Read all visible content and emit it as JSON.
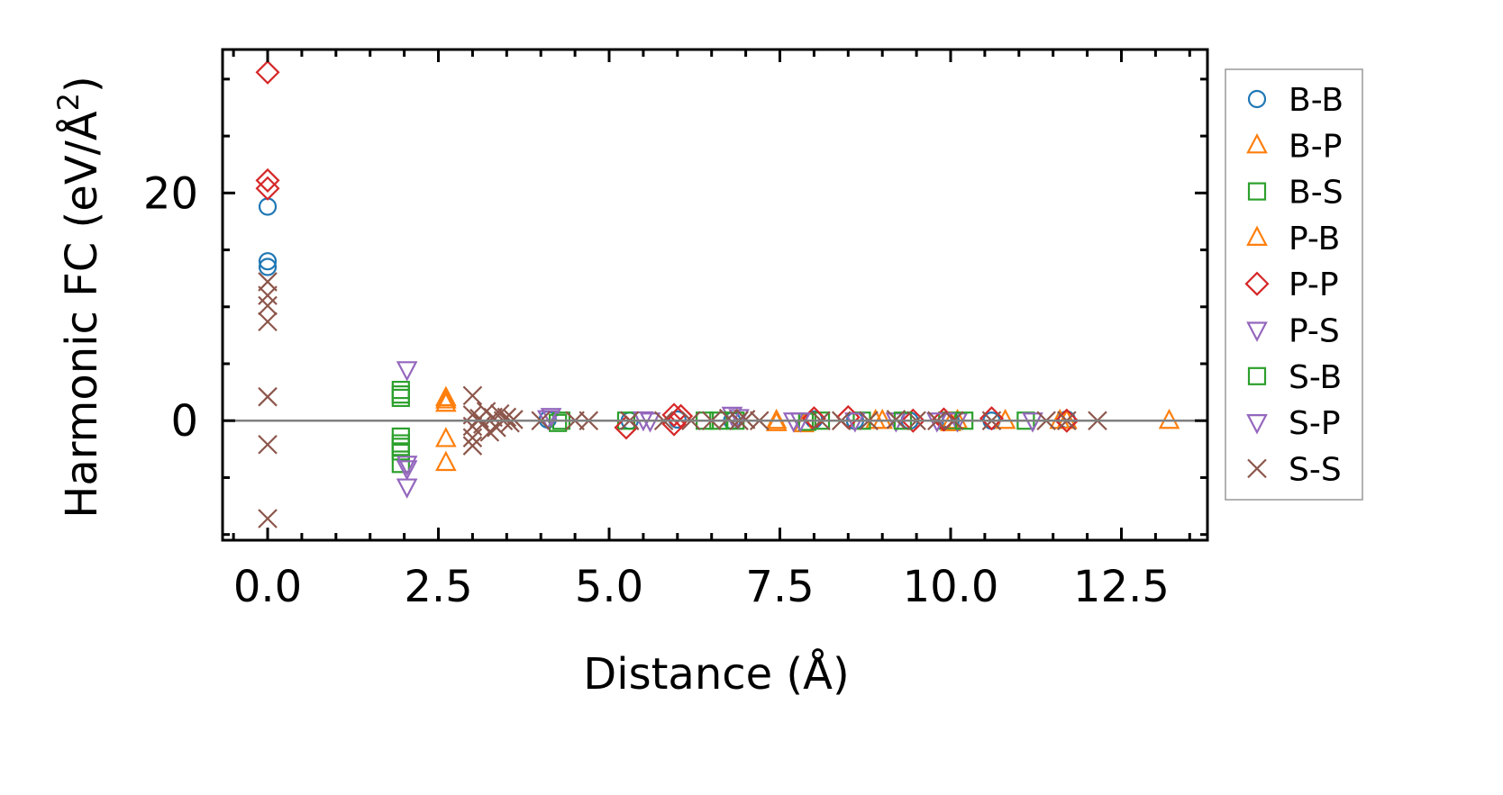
{
  "chart_data": {
    "type": "scatter",
    "xlabel": "Distance (Å)",
    "ylabel": "Harmonic FC (eV/Å²)",
    "ylabel_main": "Harmonic FC (eV/Å",
    "ylabel_sup": "2",
    "ylabel_end": ")",
    "xlim": [
      -0.66,
      13.76
    ],
    "ylim": [
      -10.5,
      32.6
    ],
    "xticks": [
      0.0,
      2.5,
      5.0,
      7.5,
      10.0,
      12.5
    ],
    "xtick_labels": [
      "0.0",
      "2.5",
      "5.0",
      "7.5",
      "10.0",
      "12.5"
    ],
    "yticks": [
      0,
      20
    ],
    "ytick_labels": [
      "0",
      "20"
    ],
    "x_minor_step": 0.5,
    "y_minor_step": 5,
    "zero_line": true,
    "legend_position": "outside-right",
    "series": [
      {
        "name": "B-B",
        "marker": "circle",
        "color": "#1f77b4",
        "points": [
          [
            0,
            18.8
          ],
          [
            0,
            14.0
          ],
          [
            0,
            13.5
          ],
          [
            4.1,
            0.1
          ],
          [
            5.3,
            0
          ],
          [
            6.0,
            0.1
          ],
          [
            6.8,
            0
          ],
          [
            8.0,
            0.1
          ],
          [
            8.6,
            0
          ],
          [
            9.4,
            0
          ],
          [
            10.0,
            0
          ],
          [
            10.6,
            0
          ],
          [
            11.7,
            0.1
          ]
        ]
      },
      {
        "name": "B-P",
        "marker": "triangle-up",
        "color": "#ff7f0e",
        "points": [
          [
            2.61,
            2.0
          ],
          [
            2.61,
            1.5
          ],
          [
            2.61,
            -1.6
          ],
          [
            2.61,
            -3.7
          ],
          [
            7.45,
            0
          ],
          [
            7.85,
            -0.3
          ],
          [
            8.9,
            0
          ],
          [
            10.1,
            0
          ],
          [
            10.8,
            0
          ],
          [
            11.6,
            0
          ],
          [
            13.2,
            0
          ]
        ]
      },
      {
        "name": "B-S",
        "marker": "square",
        "color": "#2ca02c",
        "points": [
          [
            1.95,
            2.7
          ],
          [
            1.95,
            2.0
          ],
          [
            1.95,
            -1.4
          ],
          [
            1.95,
            -2.0
          ],
          [
            1.95,
            -2.7
          ],
          [
            1.95,
            -3.8
          ],
          [
            4.3,
            0
          ],
          [
            5.25,
            0
          ],
          [
            6.4,
            0
          ],
          [
            6.85,
            0
          ],
          [
            8.1,
            0
          ],
          [
            8.7,
            0
          ],
          [
            9.95,
            0
          ],
          [
            11.1,
            0
          ]
        ]
      },
      {
        "name": "P-B",
        "marker": "triangle-up",
        "color": "#ff7f0e",
        "points": [
          [
            2.61,
            1.8
          ],
          [
            7.45,
            -0.2
          ],
          [
            9.0,
            0
          ],
          [
            10.0,
            -0.2
          ],
          [
            11.7,
            0
          ]
        ]
      },
      {
        "name": "P-P",
        "marker": "diamond",
        "color": "#d62728",
        "points": [
          [
            0,
            30.6
          ],
          [
            0,
            21.1
          ],
          [
            0,
            20.4
          ],
          [
            5.25,
            -0.6
          ],
          [
            5.95,
            0.5
          ],
          [
            5.95,
            -0.3
          ],
          [
            6.05,
            0.4
          ],
          [
            8.0,
            0.2
          ],
          [
            8.5,
            0.3
          ],
          [
            9.45,
            0
          ],
          [
            9.9,
            0.1
          ],
          [
            10.6,
            0.2
          ],
          [
            11.7,
            0
          ]
        ]
      },
      {
        "name": "P-S",
        "marker": "triangle-down",
        "color": "#9467bd",
        "points": [
          [
            2.04,
            4.5
          ],
          [
            2.04,
            -3.8
          ],
          [
            2.04,
            -5.8
          ],
          [
            4.15,
            0.4
          ],
          [
            5.5,
            0.1
          ],
          [
            6.8,
            0.5
          ],
          [
            7.7,
            0
          ],
          [
            9.2,
            0
          ],
          [
            10.1,
            0
          ]
        ]
      },
      {
        "name": "S-B",
        "marker": "square",
        "color": "#2ca02c",
        "points": [
          [
            1.95,
            2.3
          ],
          [
            1.95,
            -2.3
          ],
          [
            4.25,
            -0.2
          ],
          [
            6.6,
            0
          ],
          [
            7.9,
            -0.1
          ],
          [
            9.3,
            0
          ],
          [
            10.2,
            0
          ]
        ]
      },
      {
        "name": "S-P",
        "marker": "triangle-down",
        "color": "#9467bd",
        "points": [
          [
            2.04,
            -4.2
          ],
          [
            4.1,
            0.2
          ],
          [
            5.6,
            0
          ],
          [
            6.9,
            0.3
          ],
          [
            7.8,
            0
          ],
          [
            8.6,
            0
          ],
          [
            9.8,
            0
          ],
          [
            11.2,
            0
          ]
        ]
      },
      {
        "name": "S-S",
        "marker": "x",
        "color": "#8c564b",
        "points": [
          [
            0,
            12.2
          ],
          [
            0,
            11.0
          ],
          [
            0,
            10.1
          ],
          [
            0,
            8.7
          ],
          [
            0,
            2.1
          ],
          [
            0,
            -2.1
          ],
          [
            0,
            -8.6
          ],
          [
            3.0,
            2.2
          ],
          [
            3.0,
            0.5
          ],
          [
            3.0,
            -0.5
          ],
          [
            3.0,
            -1.5
          ],
          [
            3.0,
            -2.2
          ],
          [
            3.1,
            0.2
          ],
          [
            3.15,
            -0.3
          ],
          [
            3.2,
            0.8
          ],
          [
            3.25,
            -1.0
          ],
          [
            3.3,
            0.3
          ],
          [
            3.35,
            -0.6
          ],
          [
            3.4,
            0.6
          ],
          [
            3.45,
            0
          ],
          [
            3.5,
            0.3
          ],
          [
            3.55,
            -0.2
          ],
          [
            3.6,
            0.1
          ],
          [
            4.0,
            0
          ],
          [
            4.5,
            0
          ],
          [
            4.7,
            0
          ],
          [
            5.3,
            0
          ],
          [
            5.8,
            0
          ],
          [
            6.2,
            0
          ],
          [
            6.5,
            0
          ],
          [
            6.75,
            0.2
          ],
          [
            6.9,
            0
          ],
          [
            7.0,
            0.1
          ],
          [
            7.2,
            0
          ],
          [
            8.1,
            0
          ],
          [
            8.4,
            0
          ],
          [
            8.8,
            0
          ],
          [
            9.2,
            0.1
          ],
          [
            9.5,
            0
          ],
          [
            9.8,
            0
          ],
          [
            10.05,
            0
          ],
          [
            10.6,
            0
          ],
          [
            11.4,
            0
          ],
          [
            11.7,
            0
          ],
          [
            12.15,
            0
          ]
        ]
      }
    ]
  }
}
